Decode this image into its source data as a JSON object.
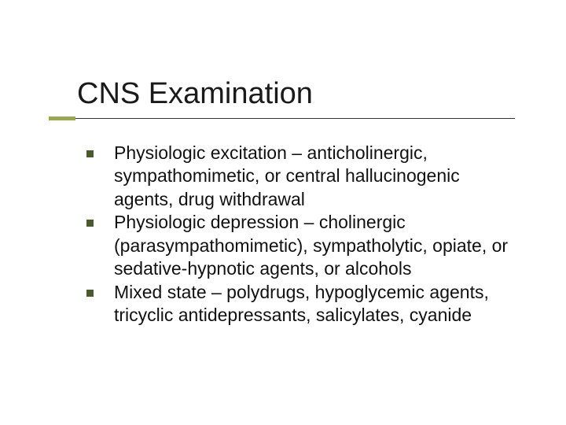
{
  "slide": {
    "title": "CNS Examination",
    "title_fontsize": 38,
    "title_color": "#1a1a1a",
    "title_font": "Arial",
    "accent_bar_color": "#9aa84f",
    "underline_color": "#333333",
    "background_color": "#ffffff",
    "body_fontsize": 23,
    "body_color": "#111111",
    "body_font": "Verdana",
    "bullet_color": "#4a5a2a",
    "bullet_size": 9,
    "bullets": [
      "Physiologic excitation – anticholinergic, sympathomimetic, or central hallucinogenic agents, drug withdrawal",
      "Physiologic depression – cholinergic (parasympathomimetic), sympatholytic, opiate, or sedative-hypnotic agents, or alcohols",
      "Mixed state – polydrugs, hypoglycemic agents, tricyclic antidepressants, salicylates, cyanide"
    ]
  }
}
